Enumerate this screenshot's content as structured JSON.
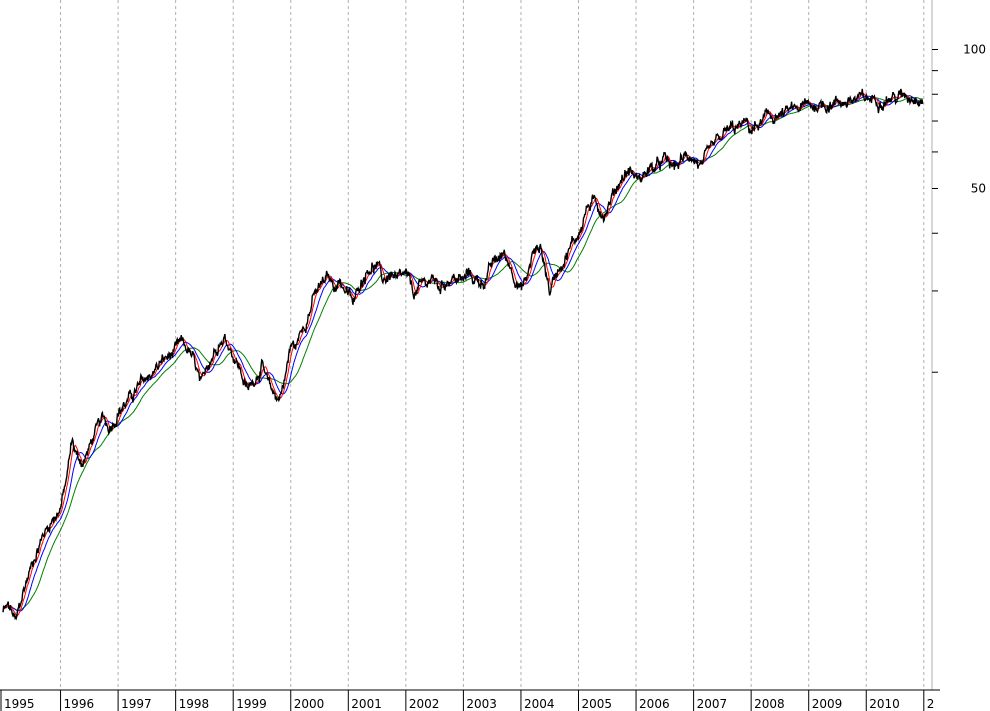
{
  "chart_data": {
    "type": "line",
    "title": "",
    "xlabel": "",
    "ylabel": "",
    "x_tick_labels": [
      "1995",
      "1996",
      "1997",
      "1998",
      "1999",
      "2000",
      "2001",
      "2002",
      "2003",
      "2004",
      "2005",
      "2006",
      "2007",
      "2008",
      "2009",
      "2010",
      "2"
    ],
    "y_scale": "log",
    "y_tick_labels": [
      "100",
      "50"
    ],
    "y_ticks": [
      100,
      50
    ],
    "y_minor_ticks": [
      90,
      80,
      70,
      60,
      40,
      30,
      20
    ],
    "ylim": [
      4.1,
      128
    ],
    "grid": "vertical-dashed",
    "colors": {
      "price": "#000000",
      "ma_fast": "#ff0000",
      "ma_mid": "#0000ff",
      "ma_slow": "#008000"
    },
    "series": [
      {
        "x": [
          1995.0,
          1995.08,
          1995.15,
          1995.22,
          1995.3,
          1995.4,
          1995.55,
          1995.7,
          1995.85,
          1996.0,
          1996.1,
          1996.2,
          1996.3,
          1996.4,
          1996.5,
          1996.6,
          1996.75,
          1996.85,
          1997.0,
          1997.2,
          1997.4,
          1997.6,
          1997.8,
          1997.95,
          1998.1,
          1998.25,
          1998.35,
          1998.45,
          1998.55,
          1998.65,
          1998.75,
          1998.85,
          1998.95,
          1999.1,
          1999.25,
          1999.35,
          1999.5,
          1999.6,
          1999.7,
          1999.8,
          1999.9,
          2000.0,
          2000.1,
          2000.2,
          2000.3,
          2000.4,
          2000.55,
          2000.65,
          2000.75,
          2000.85,
          2001.0,
          2001.1,
          2001.2,
          2001.35,
          2001.5,
          2001.6,
          2001.75,
          2001.85,
          2002.0,
          2002.15,
          2002.3,
          2002.45,
          2002.6,
          2002.7,
          2002.8,
          2002.9,
          2003.0,
          2003.1,
          2003.2,
          2003.35,
          2003.5,
          2003.7,
          2003.85,
          2004.0,
          2004.1,
          2004.2,
          2004.35,
          2004.5,
          2004.65,
          2004.8,
          2005.0,
          2005.15,
          2005.3,
          2005.45,
          2005.6,
          2005.75,
          2005.9,
          2006.05,
          2006.2,
          2006.35,
          2006.5,
          2006.65,
          2006.8,
          2006.95,
          2007.15,
          2007.3,
          2007.45,
          2007.6,
          2007.75,
          2007.9,
          2008.0,
          2008.15,
          2008.3,
          2008.45,
          2008.6,
          2008.7,
          2008.8,
          2008.9,
          2009.05,
          2009.2,
          2009.35,
          2009.5,
          2009.65,
          2009.85,
          2010.0,
          2010.15,
          2010.3,
          2010.45,
          2010.6,
          2010.7,
          2010.8,
          2010.9,
          2010.98
        ],
        "y": [
          6.05,
          6.2,
          6.05,
          5.7,
          6.3,
          7.0,
          8.0,
          8.9,
          9.6,
          10.2,
          11.6,
          14.2,
          13.0,
          12.8,
          13.7,
          14.8,
          15.8,
          15.2,
          16.5,
          17.5,
          18.8,
          20.0,
          21.3,
          21.8,
          23.0,
          22.0,
          20.4,
          18.3,
          20.8,
          22.0,
          23.5,
          23.8,
          22.7,
          20.6,
          18.2,
          19.2,
          20.8,
          18.7,
          17.9,
          17.6,
          19.6,
          22.8,
          22.8,
          25.0,
          26.7,
          29.1,
          31.0,
          32.0,
          30.8,
          31.7,
          29.5,
          28.0,
          31.1,
          34.0,
          34.0,
          31.5,
          32.8,
          31.3,
          32.2,
          29.5,
          31.0,
          32.0,
          30.5,
          31.7,
          32.1,
          31.8,
          31.5,
          32.8,
          31.7,
          31.4,
          34.1,
          36.1,
          33.4,
          30.3,
          31.7,
          36.0,
          37.4,
          30.0,
          33.8,
          36.3,
          40.0,
          45.6,
          46.5,
          44.2,
          48.5,
          53.0,
          54.9,
          51.9,
          55.0,
          55.3,
          57.4,
          55.3,
          57.5,
          59.4,
          55.3,
          60.0,
          63.5,
          66.7,
          67.3,
          69.0,
          67.0,
          68.6,
          71.5,
          71.8,
          72.5,
          73.5,
          74.2,
          75.0,
          75.6,
          76.0,
          76.5,
          77.0,
          77.4,
          77.8,
          78.0,
          78.3,
          78.6,
          78.8,
          79.0,
          79.2,
          79.4,
          79.5,
          79.6
        ],
        "name": ""
      }
    ]
  }
}
